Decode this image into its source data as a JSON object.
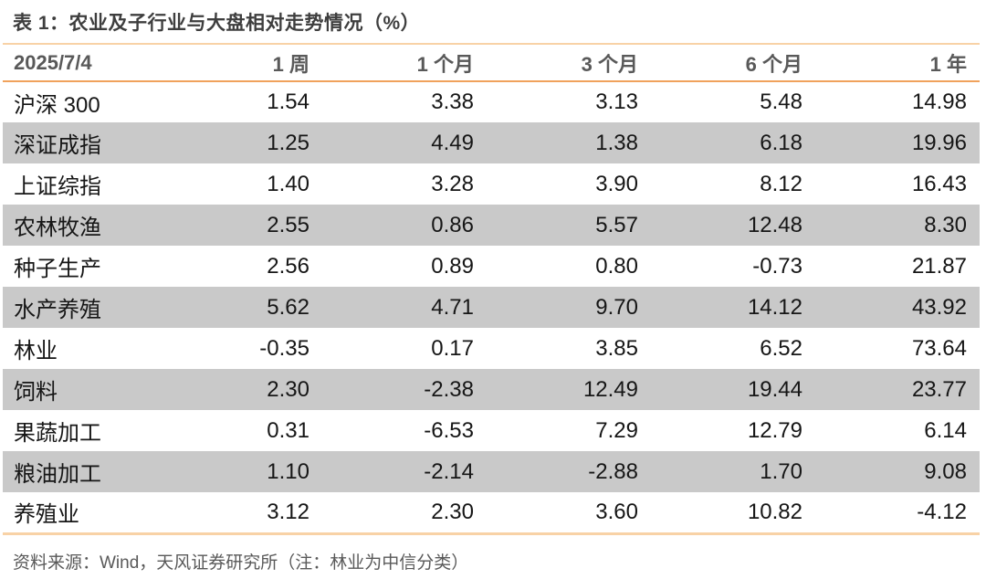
{
  "title": "表 1：农业及子行业与大盘相对走势情况（%）",
  "table": {
    "columns": [
      "2025/7/4",
      "1 周",
      "1 个月",
      "3 个月",
      "6 个月",
      "1 年"
    ],
    "rows": [
      {
        "label": "沪深 300",
        "values": [
          "1.54",
          "3.38",
          "3.13",
          "5.48",
          "14.98"
        ]
      },
      {
        "label": "深证成指",
        "values": [
          "1.25",
          "4.49",
          "1.38",
          "6.18",
          "19.96"
        ]
      },
      {
        "label": "上证综指",
        "values": [
          "1.40",
          "3.28",
          "3.90",
          "8.12",
          "16.43"
        ]
      },
      {
        "label": "农林牧渔",
        "values": [
          "2.55",
          "0.86",
          "5.57",
          "12.48",
          "8.30"
        ]
      },
      {
        "label": "种子生产",
        "values": [
          "2.56",
          "0.89",
          "0.80",
          "-0.73",
          "21.87"
        ]
      },
      {
        "label": "水产养殖",
        "values": [
          "5.62",
          "4.71",
          "9.70",
          "14.12",
          "43.92"
        ]
      },
      {
        "label": "林业",
        "values": [
          "-0.35",
          "0.17",
          "3.85",
          "6.52",
          "73.64"
        ]
      },
      {
        "label": "饲料",
        "values": [
          "2.30",
          "-2.38",
          "12.49",
          "19.44",
          "23.77"
        ]
      },
      {
        "label": "果蔬加工",
        "values": [
          "0.31",
          "-6.53",
          "7.29",
          "12.79",
          "6.14"
        ]
      },
      {
        "label": "粮油加工",
        "values": [
          "1.10",
          "-2.14",
          "-2.88",
          "1.70",
          "9.08"
        ]
      },
      {
        "label": "养殖业",
        "values": [
          "3.12",
          "2.30",
          "3.60",
          "10.82",
          "-4.12"
        ]
      }
    ]
  },
  "footer": "资料来源：Wind，天风证券研究所（注：林业为中信分类）",
  "colors": {
    "accent_border_light": "#f8d2a6",
    "accent_border_dark": "#f0a25c",
    "row_alt_bg": "#c9c9c9",
    "title_text": "#3e3e3e",
    "header_text": "#595959",
    "body_text": "#161616",
    "footer_text": "#595959"
  }
}
